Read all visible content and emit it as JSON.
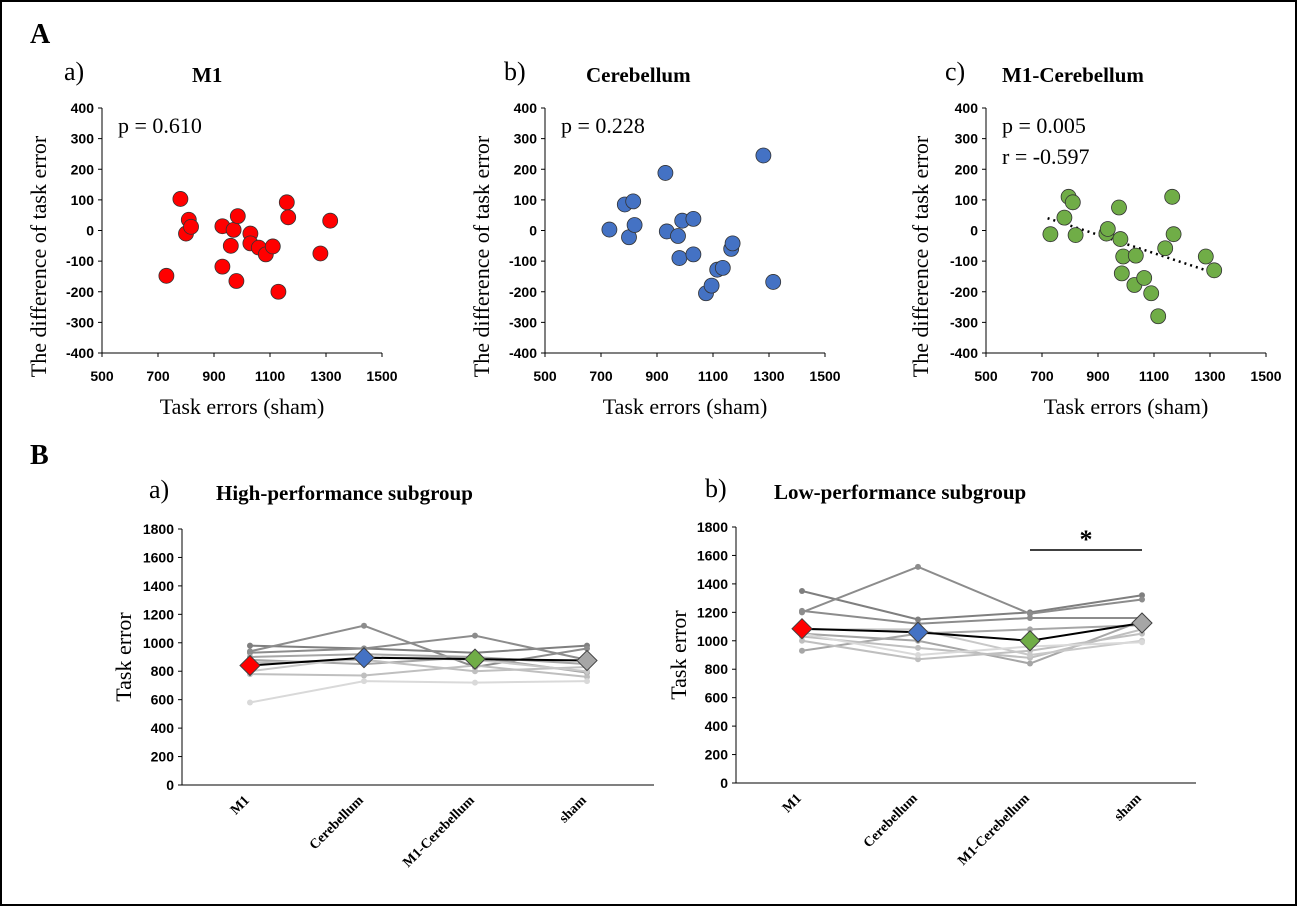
{
  "panel_labels": {
    "A": "A",
    "B": "B"
  },
  "scatter_common": {
    "xlabel": "Task errors (sham)",
    "ylabel": "The difference of task error",
    "xlim": [
      500,
      1500
    ],
    "ylim": [
      -400,
      400
    ],
    "xticks": [
      "500",
      "700",
      "900",
      "1100",
      "1300",
      "1500"
    ],
    "yticks": [
      "400",
      "300",
      "200",
      "100",
      "0",
      "-100",
      "-200",
      "-300",
      "-400"
    ]
  },
  "lines_common": {
    "ylabel": "Task error",
    "ylim": [
      0,
      1800
    ],
    "yticks": [
      "1800",
      "1600",
      "1400",
      "1200",
      "1000",
      "800",
      "600",
      "400",
      "200",
      "0"
    ],
    "categories": [
      "M1",
      "Cerebellum",
      "M1-Cerebellum",
      "sham"
    ]
  },
  "colors": {
    "red": "#FF0000",
    "blue": "#4472C4",
    "green": "#70AD47",
    "gray": "#A6A6A6",
    "black": "#000000"
  },
  "chart_data": [
    {
      "type": "scatter",
      "letter": "a)",
      "title": "M1",
      "stats": [
        "p = 0.610"
      ],
      "color": "#FF0000",
      "trendline": null,
      "points": [
        [
          730,
          -148
        ],
        [
          780,
          103
        ],
        [
          800,
          -10
        ],
        [
          810,
          35
        ],
        [
          818,
          12
        ],
        [
          930,
          14
        ],
        [
          930,
          -118
        ],
        [
          960,
          -50
        ],
        [
          970,
          2
        ],
        [
          980,
          -165
        ],
        [
          985,
          47
        ],
        [
          1030,
          -10
        ],
        [
          1030,
          -42
        ],
        [
          1060,
          -56
        ],
        [
          1085,
          -78
        ],
        [
          1110,
          -52
        ],
        [
          1130,
          -200
        ],
        [
          1160,
          92
        ],
        [
          1165,
          43
        ],
        [
          1280,
          -75
        ],
        [
          1315,
          32
        ]
      ]
    },
    {
      "type": "scatter",
      "letter": "b)",
      "title": "Cerebellum",
      "stats": [
        "p = 0.228"
      ],
      "color": "#4472C4",
      "trendline": null,
      "points": [
        [
          730,
          3
        ],
        [
          785,
          85
        ],
        [
          800,
          -22
        ],
        [
          815,
          95
        ],
        [
          820,
          18
        ],
        [
          930,
          188
        ],
        [
          935,
          -3
        ],
        [
          975,
          -18
        ],
        [
          980,
          -90
        ],
        [
          990,
          32
        ],
        [
          1030,
          38
        ],
        [
          1030,
          -78
        ],
        [
          1075,
          -205
        ],
        [
          1095,
          -180
        ],
        [
          1115,
          -128
        ],
        [
          1135,
          -122
        ],
        [
          1165,
          -60
        ],
        [
          1170,
          -42
        ],
        [
          1280,
          245
        ],
        [
          1315,
          -168
        ]
      ]
    },
    {
      "type": "scatter",
      "letter": "c)",
      "title": "M1-Cerebellum",
      "stats": [
        "p = 0.005",
        "r = -0.597"
      ],
      "color": "#70AD47",
      "trendline": [
        [
          720,
          40
        ],
        [
          1320,
          -140
        ]
      ],
      "points": [
        [
          730,
          -12
        ],
        [
          780,
          42
        ],
        [
          795,
          110
        ],
        [
          810,
          92
        ],
        [
          820,
          -15
        ],
        [
          930,
          -10
        ],
        [
          935,
          5
        ],
        [
          975,
          75
        ],
        [
          980,
          -28
        ],
        [
          985,
          -140
        ],
        [
          990,
          -85
        ],
        [
          1030,
          -178
        ],
        [
          1035,
          -82
        ],
        [
          1065,
          -155
        ],
        [
          1090,
          -205
        ],
        [
          1115,
          -280
        ],
        [
          1140,
          -58
        ],
        [
          1165,
          110
        ],
        [
          1170,
          -12
        ],
        [
          1285,
          -85
        ],
        [
          1315,
          -130
        ]
      ]
    },
    {
      "type": "line",
      "letter": "a)",
      "title": "High-performance subgroup",
      "categories": [
        "M1",
        "Cerebellum",
        "M1-Cerebellum",
        "sham"
      ],
      "significance": null,
      "individual_series": [
        {
          "values": [
            980,
            960,
            930,
            980
          ],
          "shade": "#7F7F7F"
        },
        {
          "values": [
            940,
            1120,
            830,
            960
          ],
          "shade": "#8C8C8C"
        },
        {
          "values": [
            930,
            960,
            1050,
            880
          ],
          "shade": "#8C8C8C"
        },
        {
          "values": [
            900,
            920,
            900,
            850
          ],
          "shade": "#A6A6A6"
        },
        {
          "values": [
            880,
            850,
            900,
            790
          ],
          "shade": "#A6A6A6"
        },
        {
          "values": [
            860,
            880,
            800,
            830
          ],
          "shade": "#BFBFBF"
        },
        {
          "values": [
            780,
            770,
            840,
            760
          ],
          "shade": "#BFBFBF"
        },
        {
          "values": [
            800,
            900,
            880,
            800
          ],
          "shade": "#C8C8C8"
        },
        {
          "values": [
            580,
            730,
            720,
            730
          ],
          "shade": "#D9D9D9"
        }
      ],
      "mean": {
        "values": [
          840,
          895,
          885,
          875
        ],
        "marker_colors": [
          "#FF0000",
          "#4472C4",
          "#70AD47",
          "#A6A6A6"
        ]
      }
    },
    {
      "type": "line",
      "letter": "b)",
      "title": "Low-performance subgroup",
      "categories": [
        "M1",
        "Cerebellum",
        "M1-Cerebellum",
        "sham"
      ],
      "significance": {
        "from": "M1-Cerebellum",
        "to": "sham",
        "label": "*"
      },
      "individual_series": [
        {
          "values": [
            1350,
            1150,
            1200,
            1320
          ],
          "shade": "#7F7F7F"
        },
        {
          "values": [
            1200,
            1520,
            1190,
            1290
          ],
          "shade": "#8C8C8C"
        },
        {
          "values": [
            1210,
            1120,
            1160,
            1160
          ],
          "shade": "#8C8C8C"
        },
        {
          "values": [
            930,
            1050,
            1080,
            1110
          ],
          "shade": "#A6A6A6"
        },
        {
          "values": [
            1050,
            1000,
            840,
            1140
          ],
          "shade": "#A6A6A6"
        },
        {
          "values": [
            1030,
            950,
            880,
            1080
          ],
          "shade": "#BFBFBF"
        },
        {
          "values": [
            1000,
            870,
            930,
            1050
          ],
          "shade": "#BFBFBF"
        },
        {
          "values": [
            1080,
            1080,
            900,
            1000
          ],
          "shade": "#C8C8C8"
        },
        {
          "values": [
            1050,
            900,
            960,
            990
          ],
          "shade": "#D9D9D9"
        }
      ],
      "mean": {
        "values": [
          1085,
          1060,
          1000,
          1125
        ],
        "marker_colors": [
          "#FF0000",
          "#4472C4",
          "#70AD47",
          "#A6A6A6"
        ]
      }
    }
  ]
}
